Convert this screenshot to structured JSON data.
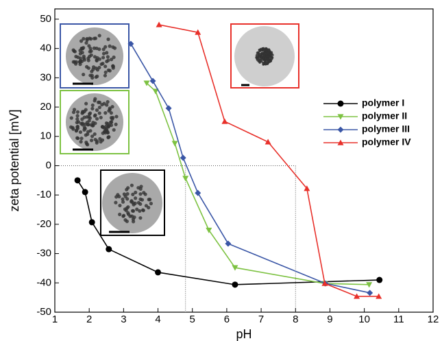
{
  "chart_data": {
    "type": "line",
    "x_label": "pH",
    "y_label": "zeta potential [mV]",
    "xlim": [
      1,
      12
    ],
    "ylim": [
      -50,
      53.5
    ],
    "xticks": [
      1,
      2,
      3,
      4,
      5,
      6,
      7,
      8,
      9,
      10,
      11,
      12
    ],
    "yticks": [
      -50,
      -40,
      -30,
      -20,
      -10,
      0,
      10,
      20,
      30,
      40,
      50
    ],
    "series": [
      {
        "name": "polymer I",
        "color": "#000000",
        "marker": "circle",
        "x": [
          1.66,
          1.88,
          2.08,
          2.57,
          4.0,
          6.24,
          10.44
        ],
        "values": [
          -5,
          -9,
          -19.3,
          -28.5,
          -36.4,
          -40.6,
          -39
        ]
      },
      {
        "name": "polymer II",
        "color": "#7dc242",
        "marker": "triangle-down",
        "x": [
          3.67,
          3.93,
          4.49,
          4.8,
          5.48,
          6.24,
          8.85,
          10.14
        ],
        "values": [
          28.2,
          25.4,
          7.6,
          -4.3,
          -22,
          -34.8,
          -40.2,
          -40.6
        ]
      },
      {
        "name": "polymer III",
        "color": "#3a56a6",
        "marker": "diamond",
        "x": [
          3.21,
          3.85,
          4.31,
          4.73,
          5.16,
          6.04,
          8.87,
          10.16
        ],
        "values": [
          41.6,
          28.9,
          19.6,
          2.7,
          -9.3,
          -26.6,
          -40.2,
          -43.4
        ]
      },
      {
        "name": "polymer IV",
        "color": "#e8302a",
        "marker": "triangle-up",
        "x": [
          4.03,
          5.16,
          5.94,
          7.2,
          8.33,
          8.85,
          9.78,
          10.42
        ],
        "values": [
          48.1,
          45.5,
          15.1,
          8.1,
          -7.8,
          -40.2,
          -44.6,
          -44.6
        ]
      }
    ],
    "reference_lines": {
      "x": [
        4.8,
        8.0
      ],
      "y": [
        0
      ]
    }
  }
}
